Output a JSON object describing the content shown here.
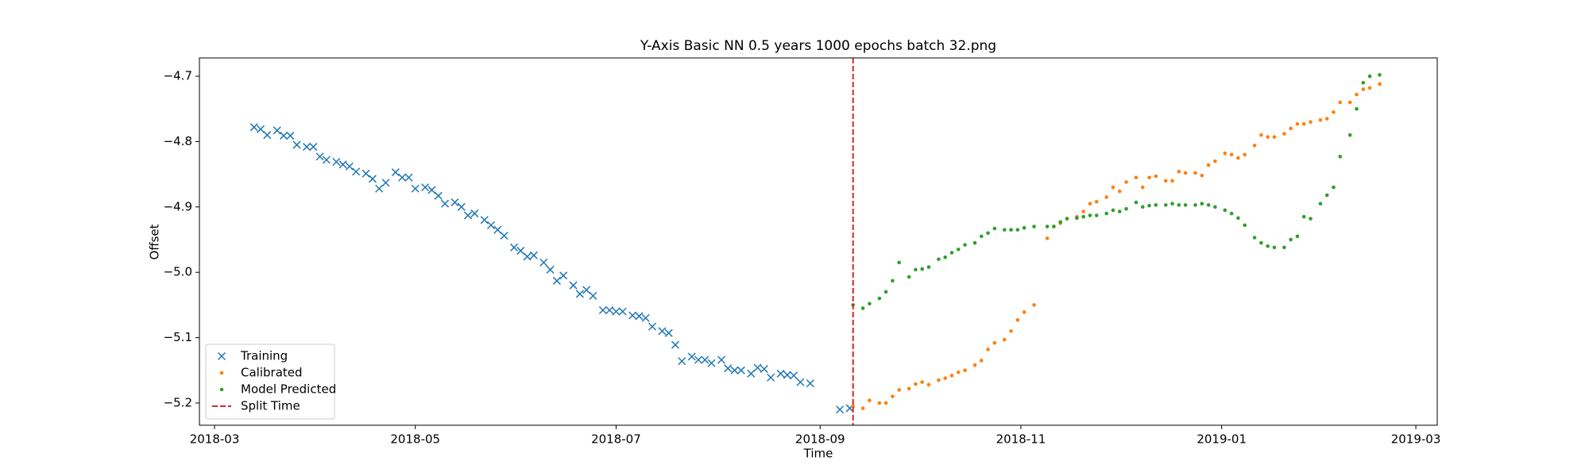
{
  "chart_data": {
    "type": "scatter",
    "title": "Y-Axis Basic NN 0.5 years 1000 epochs batch 32.png",
    "x_label": "Time",
    "y_label": "Offset",
    "xlim": [
      17586.4,
      17962.5
    ],
    "ylim": [
      -5.234,
      -4.672
    ],
    "xticks": [
      {
        "value": 17591,
        "label": "2018-03"
      },
      {
        "value": 17652,
        "label": "2018-05"
      },
      {
        "value": 17713,
        "label": "2018-07"
      },
      {
        "value": 17775,
        "label": "2018-09"
      },
      {
        "value": 17836,
        "label": "2018-11"
      },
      {
        "value": 17897,
        "label": "2019-01"
      },
      {
        "value": 17956,
        "label": "2019-03"
      }
    ],
    "yticks": [
      {
        "value": -5.2,
        "label": "−5.2"
      },
      {
        "value": -5.1,
        "label": "−5.1"
      },
      {
        "value": -5.0,
        "label": "−5.0"
      },
      {
        "value": -4.9,
        "label": "−4.9"
      },
      {
        "value": -4.8,
        "label": "−4.8"
      },
      {
        "value": -4.7,
        "label": "−4.7"
      }
    ],
    "legend": "lower left",
    "series": [
      {
        "name": "Training",
        "marker": "x",
        "color": "#1f77b4",
        "x": [
          17603,
          17605,
          17607,
          17610,
          17612,
          17614,
          17616,
          17619,
          17621,
          17623,
          17625,
          17628,
          17630,
          17632,
          17634,
          17637,
          17639,
          17641,
          17643,
          17646,
          17648,
          17650,
          17652,
          17655,
          17657,
          17659,
          17661,
          17664,
          17666,
          17668,
          17670,
          17673,
          17675,
          17677,
          17679,
          17682,
          17684,
          17686,
          17688,
          17691,
          17693,
          17695,
          17697,
          17700,
          17702,
          17704,
          17706,
          17709,
          17711,
          17713,
          17715,
          17718,
          17720,
          17722,
          17724,
          17727,
          17729,
          17731,
          17733,
          17736,
          17738,
          17740,
          17742,
          17745,
          17747,
          17749,
          17751,
          17754,
          17756,
          17758,
          17760,
          17763,
          17765,
          17767,
          17769,
          17772,
          17781,
          17784
        ],
        "values": [
          -4.778,
          -4.781,
          -4.79,
          -4.783,
          -4.791,
          -4.791,
          -4.805,
          -4.808,
          -4.808,
          -4.823,
          -4.828,
          -4.831,
          -4.835,
          -4.838,
          -4.846,
          -4.849,
          -4.857,
          -4.872,
          -4.863,
          -4.847,
          -4.855,
          -4.855,
          -4.872,
          -4.87,
          -4.874,
          -4.883,
          -4.895,
          -4.893,
          -4.9,
          -4.913,
          -4.91,
          -4.92,
          -4.928,
          -4.935,
          -4.944,
          -4.962,
          -4.967,
          -4.976,
          -4.974,
          -4.985,
          -4.996,
          -5.013,
          -5.005,
          -5.02,
          -5.033,
          -5.027,
          -5.036,
          -5.058,
          -5.058,
          -5.06,
          -5.06,
          -5.066,
          -5.067,
          -5.07,
          -5.083,
          -5.09,
          -5.093,
          -5.111,
          -5.136,
          -5.129,
          -5.134,
          -5.134,
          -5.139,
          -5.134,
          -5.147,
          -5.15,
          -5.15,
          -5.155,
          -5.146,
          -5.148,
          -5.161,
          -5.155,
          -5.157,
          -5.158,
          -5.168,
          -5.17,
          -5.21,
          -5.208
        ]
      },
      {
        "name": "Calibrated",
        "marker": "dot",
        "color": "#ff7f0e",
        "x": [
          17785,
          17788,
          17790,
          17793,
          17795,
          17797,
          17799,
          17802,
          17804,
          17806,
          17808,
          17811,
          17813,
          17815,
          17817,
          17819,
          17822,
          17824,
          17826,
          17828,
          17831,
          17833,
          17835,
          17837,
          17840,
          17844,
          17846,
          17848,
          17850,
          17853,
          17855,
          17857,
          17859,
          17862,
          17864,
          17866,
          17868,
          17871,
          17873,
          17875,
          17877,
          17880,
          17882,
          17884,
          17886,
          17889,
          17891,
          17893,
          17895,
          17898,
          17900,
          17902,
          17904,
          17907,
          17909,
          17911,
          17913,
          17916,
          17918,
          17920,
          17922,
          17924,
          17927,
          17929,
          17931,
          17933,
          17936,
          17938,
          17940,
          17942,
          17945
        ],
        "values": [
          -5.205,
          -5.208,
          -5.196,
          -5.2,
          -5.2,
          -5.19,
          -5.18,
          -5.178,
          -5.171,
          -5.168,
          -5.172,
          -5.165,
          -5.162,
          -5.158,
          -5.153,
          -5.15,
          -5.142,
          -5.135,
          -5.118,
          -5.108,
          -5.103,
          -5.09,
          -5.073,
          -5.061,
          -5.05,
          -4.948,
          -4.93,
          -4.925,
          -4.918,
          -4.915,
          -4.907,
          -4.895,
          -4.892,
          -4.885,
          -4.87,
          -4.876,
          -4.862,
          -4.855,
          -4.87,
          -4.855,
          -4.853,
          -4.86,
          -4.86,
          -4.846,
          -4.848,
          -4.848,
          -4.852,
          -4.836,
          -4.83,
          -4.818,
          -4.82,
          -4.825,
          -4.82,
          -4.806,
          -4.79,
          -4.793,
          -4.793,
          -4.788,
          -4.78,
          -4.773,
          -4.773,
          -4.77,
          -4.767,
          -4.765,
          -4.755,
          -4.74,
          -4.74,
          -4.728,
          -4.72,
          -4.718,
          -4.712
        ]
      },
      {
        "name": "Model Predicted",
        "marker": "dot",
        "color": "#2ca02c",
        "x": [
          17785,
          17788,
          17790,
          17793,
          17795,
          17797,
          17799,
          17802,
          17804,
          17806,
          17808,
          17811,
          17813,
          17815,
          17817,
          17819,
          17822,
          17824,
          17826,
          17828,
          17831,
          17833,
          17835,
          17837,
          17840,
          17844,
          17846,
          17848,
          17850,
          17853,
          17855,
          17857,
          17859,
          17862,
          17864,
          17866,
          17868,
          17871,
          17873,
          17875,
          17877,
          17880,
          17882,
          17884,
          17886,
          17889,
          17891,
          17893,
          17895,
          17898,
          17900,
          17902,
          17904,
          17907,
          17909,
          17911,
          17913,
          17916,
          17918,
          17920,
          17922,
          17924,
          17927,
          17929,
          17931,
          17933,
          17936,
          17938,
          17940,
          17942,
          17945
        ],
        "values": [
          -5.05,
          -5.055,
          -5.048,
          -5.04,
          -5.03,
          -5.013,
          -4.985,
          -5.007,
          -4.996,
          -4.995,
          -4.992,
          -4.98,
          -4.977,
          -4.97,
          -4.965,
          -4.958,
          -4.955,
          -4.945,
          -4.94,
          -4.933,
          -4.935,
          -4.935,
          -4.935,
          -4.932,
          -4.93,
          -4.93,
          -4.93,
          -4.923,
          -4.918,
          -4.917,
          -4.915,
          -4.913,
          -4.913,
          -4.91,
          -4.905,
          -4.907,
          -4.903,
          -4.893,
          -4.9,
          -4.898,
          -4.897,
          -4.897,
          -4.895,
          -4.897,
          -4.897,
          -4.897,
          -4.895,
          -4.897,
          -4.9,
          -4.905,
          -4.91,
          -4.917,
          -4.928,
          -4.947,
          -4.955,
          -4.96,
          -4.962,
          -4.962,
          -4.95,
          -4.945,
          -4.915,
          -4.918,
          -4.895,
          -4.882,
          -4.87,
          -4.823,
          -4.79,
          -4.75,
          -4.71,
          -4.7,
          -4.698
        ]
      },
      {
        "name": "Split Time",
        "marker": "vline",
        "color": "#d62728",
        "x": [
          17785
        ]
      }
    ]
  }
}
